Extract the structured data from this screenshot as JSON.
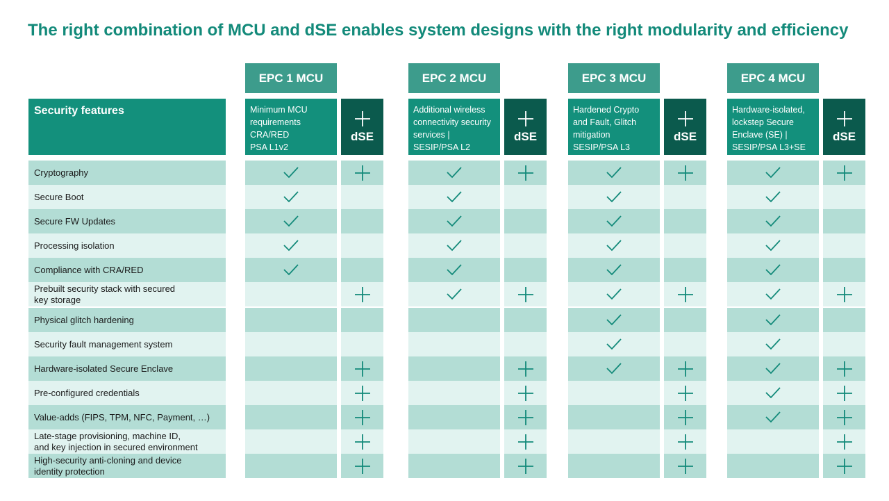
{
  "title": "The right combination of MCU and dSE enables system designs with the right modularity and efficiency",
  "security_header": "Security features",
  "dse_label": "dSE",
  "colors": {
    "title": "#138a7a",
    "header": "#3d9c8c",
    "feature_header": "#13907c",
    "dse": "#0b5a4d",
    "row_dark": "#b3ddd5",
    "row_light": "#e1f3f0",
    "mark": "#138a7a"
  },
  "columns": [
    {
      "name": "EPC 1 MCU",
      "description": [
        "Minimum MCU",
        "requirements",
        "CRA/RED",
        "PSA L1v2"
      ]
    },
    {
      "name": "EPC 2 MCU",
      "description": [
        "Additional wireless",
        "connectivity security",
        "services |",
        "SESIP/PSA L2"
      ]
    },
    {
      "name": "EPC 3 MCU",
      "description": [
        "Hardened Crypto",
        "and Fault, Glitch",
        "mitigation",
        "SESIP/PSA L3"
      ]
    },
    {
      "name": "EPC 4 MCU",
      "description": [
        "Hardware-isolated,",
        "lockstep Secure",
        "Enclave (SE) |",
        "SESIP/PSA L3+SE"
      ]
    }
  ],
  "rows": [
    {
      "label": "Cryptography",
      "mcu": [
        true,
        true,
        true,
        true
      ],
      "dse": [
        true,
        true,
        true,
        true
      ]
    },
    {
      "label": "Secure Boot",
      "mcu": [
        true,
        true,
        true,
        true
      ],
      "dse": [
        false,
        false,
        false,
        false
      ]
    },
    {
      "label": "Secure FW Updates",
      "mcu": [
        true,
        true,
        true,
        true
      ],
      "dse": [
        false,
        false,
        false,
        false
      ]
    },
    {
      "label": "Processing isolation",
      "mcu": [
        true,
        true,
        true,
        true
      ],
      "dse": [
        false,
        false,
        false,
        false
      ]
    },
    {
      "label": "Compliance with CRA/RED",
      "mcu": [
        true,
        true,
        true,
        true
      ],
      "dse": [
        false,
        false,
        false,
        false
      ]
    },
    {
      "label": "Prebuilt security stack with secured\nkey storage",
      "mcu": [
        false,
        true,
        true,
        true
      ],
      "dse": [
        true,
        true,
        true,
        true
      ]
    },
    {
      "label": "Physical glitch hardening",
      "mcu": [
        false,
        false,
        true,
        true
      ],
      "dse": [
        false,
        false,
        false,
        false
      ]
    },
    {
      "label": "Security fault management system",
      "mcu": [
        false,
        false,
        true,
        true
      ],
      "dse": [
        false,
        false,
        false,
        false
      ]
    },
    {
      "label": "Hardware-isolated Secure Enclave",
      "mcu": [
        false,
        false,
        true,
        true
      ],
      "dse": [
        true,
        true,
        true,
        true
      ]
    },
    {
      "label": "Pre-configured credentials",
      "mcu": [
        false,
        false,
        false,
        true
      ],
      "dse": [
        true,
        true,
        true,
        true
      ]
    },
    {
      "label": "Value-adds (FIPS, TPM, NFC, Payment, …)",
      "mcu": [
        false,
        false,
        false,
        true
      ],
      "dse": [
        true,
        true,
        true,
        true
      ]
    },
    {
      "label": "Late-stage provisioning, machine ID,\nand key injection in secured environment",
      "mcu": [
        false,
        false,
        false,
        false
      ],
      "dse": [
        true,
        true,
        true,
        true
      ]
    },
    {
      "label": "High-security anti-cloning and device\nidentity protection",
      "mcu": [
        false,
        false,
        false,
        false
      ],
      "dse": [
        true,
        true,
        true,
        true
      ]
    }
  ]
}
